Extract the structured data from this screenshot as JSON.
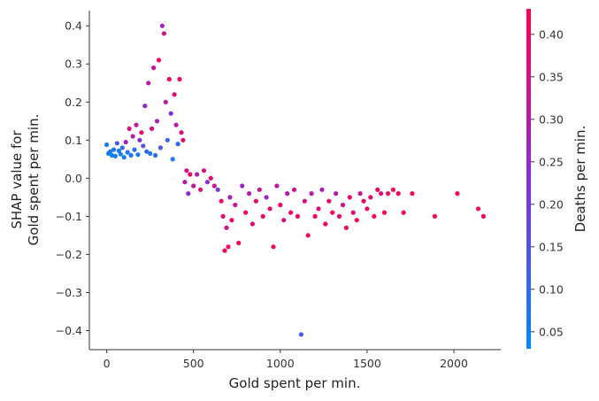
{
  "chart_data": {
    "type": "scatter",
    "title": "",
    "xlabel": "Gold spent per min.",
    "ylabel_lines": [
      "SHAP value for",
      "Gold spent per min."
    ],
    "xlim": [
      -100,
      2270
    ],
    "ylim": [
      -0.45,
      0.44
    ],
    "x_ticks": [
      0,
      500,
      1000,
      1500,
      2000
    ],
    "x_tick_labels": [
      "0",
      "500",
      "1000",
      "1500",
      "2000"
    ],
    "y_ticks": [
      -0.4,
      -0.3,
      -0.2,
      -0.1,
      0.0,
      0.1,
      0.2,
      0.3,
      0.4
    ],
    "y_tick_labels": [
      "−0.4",
      "−0.3",
      "−0.2",
      "−0.1",
      "0.0",
      "0.1",
      "0.2",
      "0.3",
      "0.4"
    ],
    "grid": false,
    "colorbar": {
      "label": "Deaths per min.",
      "range": [
        0.03,
        0.43
      ],
      "ticks": [
        0.05,
        0.1,
        0.15,
        0.2,
        0.25,
        0.3,
        0.35,
        0.4
      ],
      "tick_labels": [
        "0.05",
        "0.10",
        "0.15",
        "0.20",
        "0.25",
        "0.30",
        "0.35",
        "0.40"
      ],
      "colormap": [
        "#008bfb",
        "#ff0052"
      ]
    },
    "series": [
      {
        "points": [
          [
            0,
            0.088,
            0.06
          ],
          [
            10,
            0.065,
            0.05
          ],
          [
            20,
            0.07,
            0.06
          ],
          [
            30,
            0.06,
            0.05
          ],
          [
            40,
            0.075,
            0.08
          ],
          [
            50,
            0.058,
            0.05
          ],
          [
            60,
            0.092,
            0.12
          ],
          [
            70,
            0.072,
            0.07
          ],
          [
            80,
            0.063,
            0.06
          ],
          [
            90,
            0.08,
            0.09
          ],
          [
            100,
            0.055,
            0.06
          ],
          [
            110,
            0.095,
            0.28
          ],
          [
            120,
            0.068,
            0.08
          ],
          [
            130,
            0.13,
            0.35
          ],
          [
            140,
            0.06,
            0.07
          ],
          [
            150,
            0.11,
            0.3
          ],
          [
            160,
            0.075,
            0.09
          ],
          [
            170,
            0.14,
            0.32
          ],
          [
            180,
            0.062,
            0.06
          ],
          [
            190,
            0.1,
            0.22
          ],
          [
            200,
            0.12,
            0.38
          ],
          [
            210,
            0.085,
            0.15
          ],
          [
            220,
            0.19,
            0.25
          ],
          [
            230,
            0.07,
            0.1
          ],
          [
            240,
            0.25,
            0.3
          ],
          [
            250,
            0.065,
            0.08
          ],
          [
            260,
            0.13,
            0.36
          ],
          [
            270,
            0.29,
            0.33
          ],
          [
            280,
            0.06,
            0.09
          ],
          [
            290,
            0.15,
            0.28
          ],
          [
            300,
            0.31,
            0.41
          ],
          [
            310,
            0.08,
            0.14
          ],
          [
            320,
            0.4,
            0.26
          ],
          [
            330,
            0.38,
            0.35
          ],
          [
            340,
            0.2,
            0.3
          ],
          [
            350,
            0.1,
            0.12
          ],
          [
            360,
            0.26,
            0.4
          ],
          [
            370,
            0.17,
            0.22
          ],
          [
            380,
            0.05,
            0.08
          ],
          [
            390,
            0.22,
            0.38
          ],
          [
            400,
            0.14,
            0.31
          ],
          [
            410,
            0.09,
            0.1
          ],
          [
            420,
            0.26,
            0.4
          ],
          [
            430,
            0.12,
            0.36
          ],
          [
            440,
            0.1,
            0.39
          ],
          [
            450,
            -0.01,
            0.3
          ],
          [
            460,
            0.02,
            0.36
          ],
          [
            470,
            -0.04,
            0.24
          ],
          [
            480,
            0.01,
            0.4
          ],
          [
            500,
            -0.02,
            0.33
          ],
          [
            520,
            0.01,
            0.28
          ],
          [
            540,
            -0.03,
            0.38
          ],
          [
            560,
            0.02,
            0.36
          ],
          [
            580,
            -0.01,
            0.22
          ],
          [
            600,
            0.0,
            0.4
          ],
          [
            620,
            -0.02,
            0.34
          ],
          [
            640,
            -0.03,
            0.2
          ],
          [
            660,
            -0.06,
            0.4
          ],
          [
            670,
            -0.1,
            0.38
          ],
          [
            680,
            -0.19,
            0.41
          ],
          [
            690,
            -0.13,
            0.36
          ],
          [
            700,
            -0.18,
            0.4
          ],
          [
            710,
            -0.05,
            0.28
          ],
          [
            720,
            -0.11,
            0.4
          ],
          [
            740,
            -0.07,
            0.33
          ],
          [
            760,
            -0.17,
            0.42
          ],
          [
            780,
            -0.02,
            0.26
          ],
          [
            800,
            -0.09,
            0.4
          ],
          [
            820,
            -0.04,
            0.3
          ],
          [
            840,
            -0.12,
            0.37
          ],
          [
            860,
            -0.06,
            0.41
          ],
          [
            880,
            -0.03,
            0.35
          ],
          [
            900,
            -0.1,
            0.4
          ],
          [
            920,
            -0.05,
            0.24
          ],
          [
            940,
            -0.08,
            0.38
          ],
          [
            960,
            -0.18,
            0.42
          ],
          [
            980,
            -0.02,
            0.3
          ],
          [
            1000,
            -0.07,
            0.4
          ],
          [
            1020,
            -0.11,
            0.36
          ],
          [
            1040,
            -0.04,
            0.29
          ],
          [
            1060,
            -0.09,
            0.41
          ],
          [
            1080,
            -0.03,
            0.33
          ],
          [
            1100,
            -0.1,
            0.4
          ],
          [
            1120,
            -0.41,
            0.12
          ],
          [
            1140,
            -0.06,
            0.36
          ],
          [
            1160,
            -0.15,
            0.42
          ],
          [
            1180,
            -0.04,
            0.31
          ],
          [
            1200,
            -0.1,
            0.4
          ],
          [
            1220,
            -0.08,
            0.36
          ],
          [
            1240,
            -0.03,
            0.28
          ],
          [
            1260,
            -0.12,
            0.41
          ],
          [
            1280,
            -0.06,
            0.38
          ],
          [
            1300,
            -0.09,
            0.42
          ],
          [
            1320,
            -0.04,
            0.3
          ],
          [
            1340,
            -0.1,
            0.4
          ],
          [
            1360,
            -0.07,
            0.35
          ],
          [
            1380,
            -0.13,
            0.42
          ],
          [
            1400,
            -0.05,
            0.4
          ],
          [
            1420,
            -0.09,
            0.37
          ],
          [
            1440,
            -0.11,
            0.42
          ],
          [
            1460,
            -0.04,
            0.32
          ],
          [
            1480,
            -0.06,
            0.4
          ],
          [
            1500,
            -0.08,
            0.41
          ],
          [
            1520,
            -0.05,
            0.39
          ],
          [
            1540,
            -0.1,
            0.42
          ],
          [
            1560,
            -0.03,
            0.41
          ],
          [
            1580,
            -0.04,
            0.38
          ],
          [
            1600,
            -0.09,
            0.42
          ],
          [
            1620,
            -0.04,
            0.4
          ],
          [
            1650,
            -0.03,
            0.41
          ],
          [
            1680,
            -0.04,
            0.42
          ],
          [
            1710,
            -0.09,
            0.4
          ],
          [
            1760,
            -0.04,
            0.42
          ],
          [
            1890,
            -0.1,
            0.41
          ],
          [
            2020,
            -0.04,
            0.42
          ],
          [
            2140,
            -0.08,
            0.41
          ],
          [
            2170,
            -0.1,
            0.42
          ]
        ]
      }
    ]
  }
}
